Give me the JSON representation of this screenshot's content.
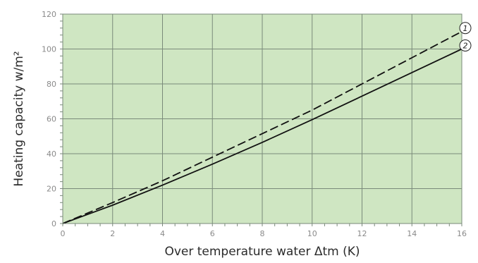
{
  "chart_data": {
    "type": "line",
    "title": "",
    "xlabel": "Over temperature water Δtm (K)",
    "ylabel": "Heating capacity w/m²",
    "xlim": [
      0,
      16
    ],
    "ylim": [
      0,
      120
    ],
    "x_ticks": [
      0,
      2,
      4,
      6,
      8,
      10,
      12,
      14,
      16
    ],
    "y_ticks": [
      0,
      20,
      40,
      60,
      80,
      100,
      120
    ],
    "grid": true,
    "plot_background": "#cfe6c2",
    "grid_color": "#7a8a7a",
    "series": [
      {
        "label": "1",
        "line_style": "dashed",
        "color": "#111111",
        "x": [
          0,
          2,
          4,
          6,
          8,
          10,
          12,
          14,
          16
        ],
        "y": [
          0,
          12,
          24.5,
          38,
          51.5,
          65,
          80,
          95,
          110
        ]
      },
      {
        "label": "2",
        "line_style": "solid",
        "color": "#111111",
        "x": [
          0,
          2,
          4,
          6,
          8,
          10,
          12,
          14,
          16
        ],
        "y": [
          0,
          10.5,
          22,
          34,
          46.5,
          59.5,
          73,
          86.5,
          100
        ]
      }
    ]
  }
}
